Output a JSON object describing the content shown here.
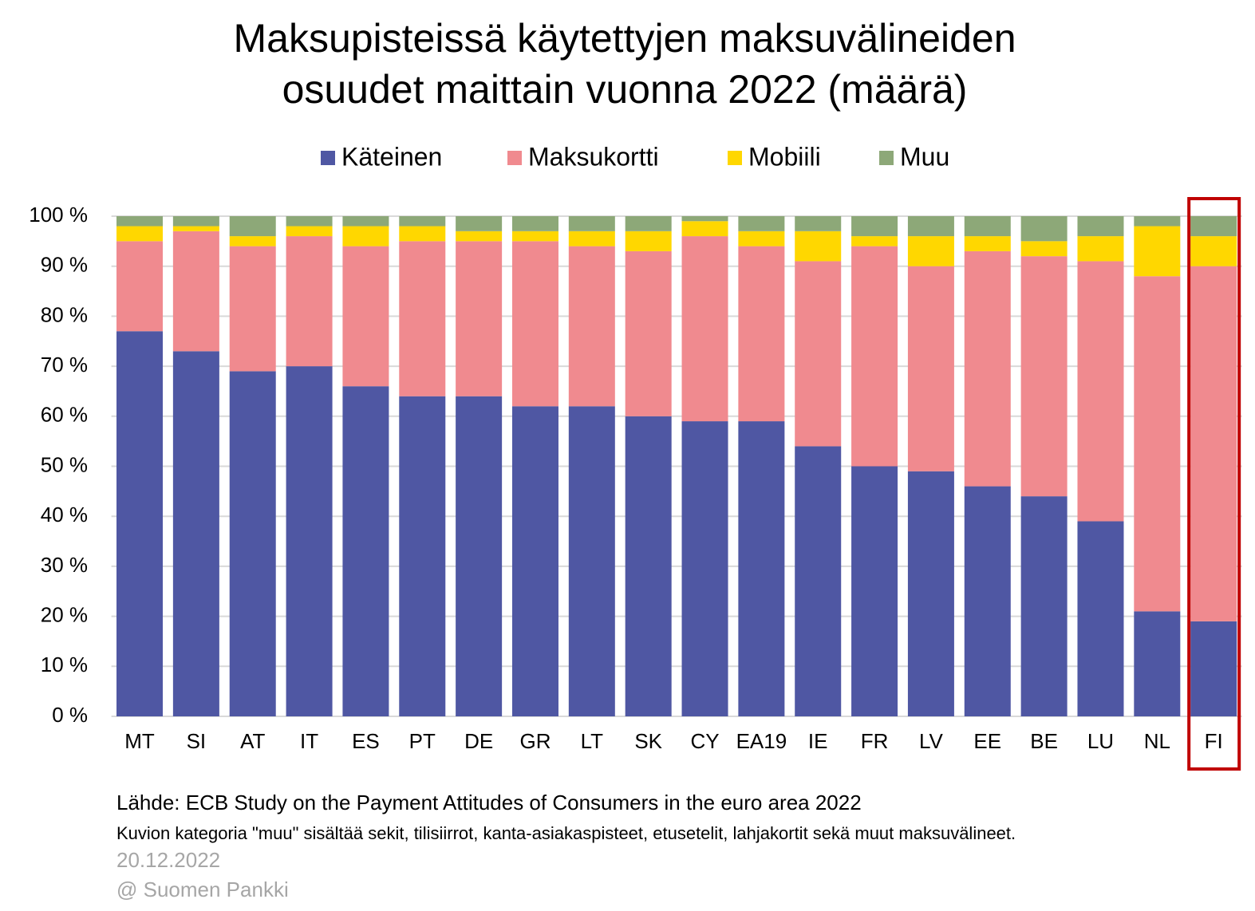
{
  "chart_data": {
    "type": "stacked_bar",
    "title": [
      "Maksupisteissä käytettyjen maksuvälineiden",
      "osuudet maittain vuonna 2022 (määrä)"
    ],
    "categories": [
      "MT",
      "SI",
      "AT",
      "IT",
      "ES",
      "PT",
      "DE",
      "GR",
      "LT",
      "SK",
      "CY",
      "EA19",
      "IE",
      "FR",
      "LV",
      "EE",
      "BE",
      "LU",
      "NL",
      "FI"
    ],
    "series": [
      {
        "name": "Käteinen",
        "color": "#4f57a3",
        "values": [
          77,
          73,
          69,
          70,
          66,
          64,
          64,
          62,
          62,
          60,
          59,
          59,
          54,
          50,
          49,
          46,
          44,
          39,
          21,
          19
        ]
      },
      {
        "name": "Maksukortti",
        "color": "#f08a8f",
        "values": [
          18,
          24,
          25,
          26,
          28,
          31,
          31,
          33,
          32,
          33,
          37,
          35,
          37,
          44,
          41,
          47,
          48,
          52,
          67,
          71
        ]
      },
      {
        "name": "Mobiili",
        "color": "#ffd700",
        "values": [
          3,
          1,
          2,
          2,
          4,
          3,
          2,
          2,
          3,
          4,
          3,
          3,
          6,
          2,
          6,
          3,
          3,
          5,
          10,
          6
        ]
      },
      {
        "name": "Muu",
        "color": "#8da878",
        "values": [
          2,
          2,
          4,
          2,
          2,
          2,
          3,
          3,
          3,
          3,
          1,
          3,
          3,
          4,
          4,
          4,
          5,
          4,
          2,
          4
        ]
      }
    ],
    "ylim": [
      0,
      100
    ],
    "yticks": [
      {
        "value": 0,
        "label": "0 %"
      },
      {
        "value": 10,
        "label": "10 %"
      },
      {
        "value": 20,
        "label": "20 %"
      },
      {
        "value": 30,
        "label": "30 %"
      },
      {
        "value": 40,
        "label": "40 %"
      },
      {
        "value": 50,
        "label": "50 %"
      },
      {
        "value": 60,
        "label": "60 %"
      },
      {
        "value": 70,
        "label": "70 %"
      },
      {
        "value": 80,
        "label": "80 %"
      },
      {
        "value": 90,
        "label": "90 %"
      },
      {
        "value": 100,
        "label": "100 %"
      }
    ],
    "grid": true,
    "legend": "top",
    "highlight": "FI",
    "highlight_color": "#c00000",
    "source": "Lähde: ECB Study on the Payment Attitudes of Consumers in the euro area 2022",
    "note": "Kuvion kategoria \"muu\" sisältää sekit, tilisiirrot, kanta-asiakaspisteet, etusetelit, lahjakortit sekä muut maksuvälineet.",
    "date": "20.12.2022",
    "credit": "@ Suomen Pankki"
  }
}
